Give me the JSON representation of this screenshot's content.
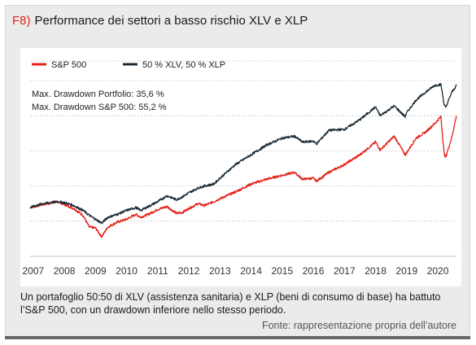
{
  "header": {
    "fig_label": "F8)",
    "title": "Performance dei settori a basso rischio XLV e XLP"
  },
  "caption": "Un portafoglio 50:50 di XLV (assistenza sanitaria) e XLP (beni di consumo di base) ha battuto l’S&P 500, con un drawdown inferiore nello stesso periodo.",
  "source": "Fonte: rappresentazione propria dell’autore",
  "chart_data": {
    "type": "line",
    "title": "Performance dei settori a basso rischio XLV e XLP",
    "xlabel": "",
    "ylabel": "",
    "x_ticks": [
      "2007",
      "2008",
      "2009",
      "2010",
      "2011",
      "2012",
      "2013",
      "2014",
      "2015",
      "2016",
      "2017",
      "2018",
      "2019",
      "2020"
    ],
    "xlim": [
      2006.9,
      2020.6
    ],
    "ylim": [
      0,
      1
    ],
    "y_axis": "unlabeled",
    "grid": "horizontal dashed",
    "legend_position": "top-left",
    "annotations": [
      "Max. Drawdown Portfolio: 35,6 %",
      "Max. Drawdown S&P 500: 55,2 %"
    ],
    "series": [
      {
        "name": "S&P 500",
        "color": "#e32219",
        "points": [
          [
            2006.9,
            0.25
          ],
          [
            2007.3,
            0.265
          ],
          [
            2007.8,
            0.28
          ],
          [
            2008.0,
            0.265
          ],
          [
            2008.3,
            0.245
          ],
          [
            2008.6,
            0.21
          ],
          [
            2008.8,
            0.15
          ],
          [
            2009.0,
            0.145
          ],
          [
            2009.2,
            0.1
          ],
          [
            2009.4,
            0.15
          ],
          [
            2009.7,
            0.175
          ],
          [
            2010.0,
            0.19
          ],
          [
            2010.3,
            0.215
          ],
          [
            2010.45,
            0.2
          ],
          [
            2010.7,
            0.215
          ],
          [
            2011.0,
            0.24
          ],
          [
            2011.3,
            0.255
          ],
          [
            2011.6,
            0.22
          ],
          [
            2011.8,
            0.225
          ],
          [
            2012.0,
            0.245
          ],
          [
            2012.3,
            0.27
          ],
          [
            2012.5,
            0.26
          ],
          [
            2012.8,
            0.28
          ],
          [
            2013.0,
            0.295
          ],
          [
            2013.5,
            0.33
          ],
          [
            2014.0,
            0.37
          ],
          [
            2014.5,
            0.395
          ],
          [
            2015.0,
            0.415
          ],
          [
            2015.4,
            0.43
          ],
          [
            2015.65,
            0.395
          ],
          [
            2016.0,
            0.4
          ],
          [
            2016.1,
            0.385
          ],
          [
            2016.5,
            0.43
          ],
          [
            2017.0,
            0.47
          ],
          [
            2017.5,
            0.52
          ],
          [
            2018.0,
            0.585
          ],
          [
            2018.15,
            0.545
          ],
          [
            2018.6,
            0.615
          ],
          [
            2018.95,
            0.52
          ],
          [
            2019.0,
            0.53
          ],
          [
            2019.3,
            0.605
          ],
          [
            2019.6,
            0.635
          ],
          [
            2019.9,
            0.68
          ],
          [
            2020.1,
            0.715
          ],
          [
            2020.2,
            0.53
          ],
          [
            2020.25,
            0.505
          ],
          [
            2020.45,
            0.61
          ],
          [
            2020.6,
            0.72
          ]
        ]
      },
      {
        "name": "50 % XLV, 50 % XLP",
        "color": "#1c2c38",
        "points": [
          [
            2006.9,
            0.25
          ],
          [
            2007.3,
            0.27
          ],
          [
            2007.8,
            0.28
          ],
          [
            2008.0,
            0.275
          ],
          [
            2008.3,
            0.26
          ],
          [
            2008.6,
            0.235
          ],
          [
            2008.8,
            0.21
          ],
          [
            2009.0,
            0.19
          ],
          [
            2009.2,
            0.17
          ],
          [
            2009.4,
            0.2
          ],
          [
            2009.7,
            0.215
          ],
          [
            2010.0,
            0.235
          ],
          [
            2010.3,
            0.25
          ],
          [
            2010.45,
            0.235
          ],
          [
            2010.7,
            0.255
          ],
          [
            2011.0,
            0.28
          ],
          [
            2011.3,
            0.31
          ],
          [
            2011.6,
            0.29
          ],
          [
            2011.8,
            0.305
          ],
          [
            2012.0,
            0.325
          ],
          [
            2012.3,
            0.35
          ],
          [
            2012.5,
            0.36
          ],
          [
            2012.8,
            0.37
          ],
          [
            2013.0,
            0.4
          ],
          [
            2013.5,
            0.47
          ],
          [
            2014.0,
            0.52
          ],
          [
            2014.5,
            0.57
          ],
          [
            2015.0,
            0.605
          ],
          [
            2015.4,
            0.615
          ],
          [
            2015.65,
            0.585
          ],
          [
            2016.0,
            0.59
          ],
          [
            2016.1,
            0.575
          ],
          [
            2016.5,
            0.645
          ],
          [
            2017.0,
            0.65
          ],
          [
            2017.5,
            0.7
          ],
          [
            2018.0,
            0.765
          ],
          [
            2018.15,
            0.72
          ],
          [
            2018.6,
            0.77
          ],
          [
            2018.95,
            0.715
          ],
          [
            2019.0,
            0.735
          ],
          [
            2019.3,
            0.8
          ],
          [
            2019.6,
            0.84
          ],
          [
            2019.9,
            0.875
          ],
          [
            2020.1,
            0.88
          ],
          [
            2020.2,
            0.78
          ],
          [
            2020.25,
            0.76
          ],
          [
            2020.45,
            0.84
          ],
          [
            2020.6,
            0.875
          ]
        ]
      }
    ]
  }
}
